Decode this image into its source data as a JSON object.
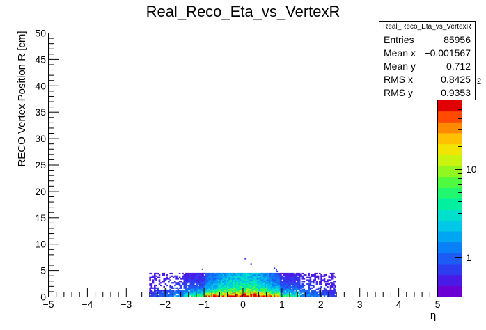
{
  "chart_data": {
    "type": "heatmap",
    "title": "Real_Reco_Eta_vs_VertexR",
    "xlabel": "η",
    "ylabel": "RECO Vertex Position R [cm]",
    "xlim": [
      -5,
      5
    ],
    "ylim": [
      0,
      50
    ],
    "x_ticks": [
      "−5",
      "−4",
      "−3",
      "−2",
      "−1",
      "0",
      "1",
      "2",
      "3",
      "4",
      "5"
    ],
    "y_ticks": [
      "0",
      "5",
      "10",
      "15",
      "20",
      "25",
      "30",
      "35",
      "40",
      "45",
      "50"
    ],
    "z_scale": "log",
    "z_ticks": [
      "1",
      "10"
    ],
    "z_partial_label": "2",
    "grid": false,
    "occupied_region": {
      "eta_range": [
        -2.4,
        2.4
      ],
      "r_range": [
        0,
        4.5
      ],
      "dense_core_eta": [
        -0.9,
        0.9
      ],
      "dense_core_r": [
        0,
        1
      ],
      "sparse_points": [
        [
          0.05,
          7.3
        ],
        [
          0.2,
          6.3
        ],
        [
          0.8,
          5.5
        ],
        [
          0.85,
          5.2
        ],
        [
          -1.05,
          5.3
        ],
        [
          0.87,
          4.9
        ]
      ]
    },
    "stats": {
      "name": "Real_Reco_Eta_vs_VertexR",
      "rows": [
        {
          "key": "Entries",
          "value": "85956"
        },
        {
          "key": "Mean x",
          "value": "−0.001567"
        },
        {
          "key": "Mean y",
          "value": "0.712"
        },
        {
          "key": "RMS x",
          "value": "0.8425"
        },
        {
          "key": "RMS y",
          "value": "0.9353"
        }
      ]
    },
    "palette": [
      "#6a00d4",
      "#4a1ae6",
      "#2e3cf0",
      "#1c5cf4",
      "#0a80f6",
      "#00a6f2",
      "#00c8e6",
      "#00e0cc",
      "#00f0a0",
      "#20f870",
      "#50fa40",
      "#90f820",
      "#c8f410",
      "#f0e400",
      "#ffc000",
      "#ff8a00",
      "#ff4a00",
      "#e00000"
    ]
  }
}
